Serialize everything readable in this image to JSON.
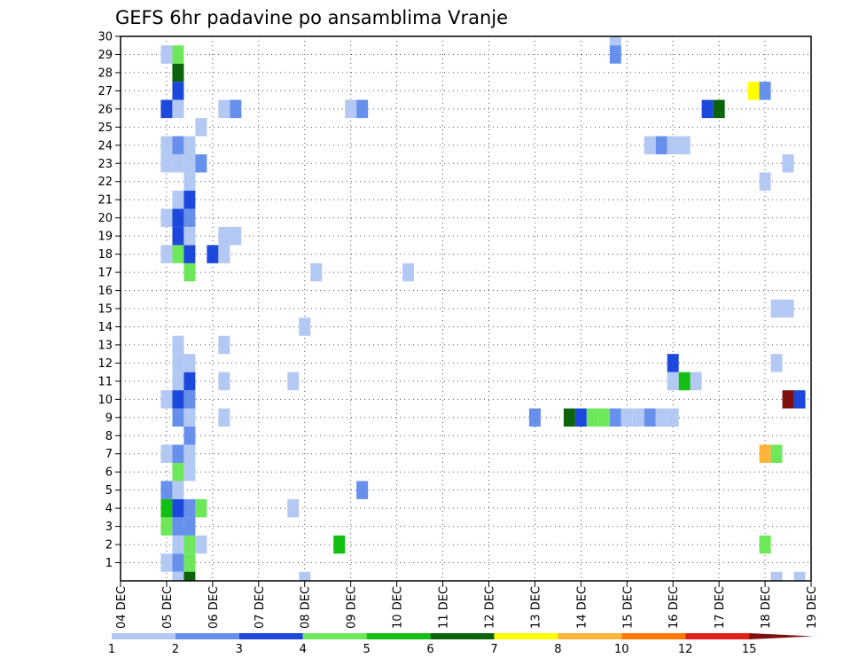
{
  "chart_data": {
    "type": "heatmap",
    "title": "GEFS 6hr padavine po ansamblima Vranje",
    "xlabel": "",
    "ylabel": "",
    "x_tick_labels": [
      "04 DEC",
      "05 DEC",
      "06 DEC",
      "07 DEC",
      "08 DEC",
      "09 DEC",
      "10 DEC",
      "11 DEC",
      "12 DEC",
      "13 DEC",
      "14 DEC",
      "15 DEC",
      "16 DEC",
      "17 DEC",
      "18 DEC",
      "19 DEC"
    ],
    "y_tick_labels": [
      "1",
      "2",
      "3",
      "4",
      "5",
      "6",
      "7",
      "8",
      "9",
      "10",
      "11",
      "12",
      "13",
      "14",
      "15",
      "16",
      "17",
      "18",
      "19",
      "20",
      "21",
      "22",
      "23",
      "24",
      "25",
      "26",
      "27",
      "28",
      "29",
      "30"
    ],
    "grid": true,
    "x_steps_per_day": 4,
    "color_scale": {
      "bounds": [
        "1",
        "2",
        "3",
        "4",
        "5",
        "6",
        "7",
        "8",
        "10",
        "12",
        "15",
        "20"
      ],
      "colors": [
        "#b3c8f3",
        "#6690ec",
        "#1c48dc",
        "#6ee85a",
        "#12bf12",
        "#0b640b",
        "#ffff00",
        "#ffb43c",
        "#ff7800",
        "#e1211b",
        "#801010"
      ]
    },
    "cells": [
      {
        "date": "05 DEC",
        "h": 0,
        "m": 1,
        "v": 1.5
      },
      {
        "date": "05 DEC",
        "h": 6,
        "m": 1,
        "v": 2.5
      },
      {
        "date": "05 DEC",
        "h": 12,
        "m": 1,
        "v": 4.5
      },
      {
        "date": "05 DEC",
        "h": 6,
        "m": 0,
        "v": 1.5
      },
      {
        "date": "05 DEC",
        "h": 12,
        "m": 0,
        "v": 6.5
      },
      {
        "date": "05 DEC",
        "h": 6,
        "m": 2,
        "v": 1.5
      },
      {
        "date": "05 DEC",
        "h": 12,
        "m": 2,
        "v": 4.5
      },
      {
        "date": "05 DEC",
        "h": 18,
        "m": 2,
        "v": 1.5
      },
      {
        "date": "05 DEC",
        "h": 0,
        "m": 3,
        "v": 4.5
      },
      {
        "date": "05 DEC",
        "h": 6,
        "m": 3,
        "v": 2.5
      },
      {
        "date": "05 DEC",
        "h": 12,
        "m": 3,
        "v": 2.5
      },
      {
        "date": "05 DEC",
        "h": 0,
        "m": 4,
        "v": 5.5
      },
      {
        "date": "05 DEC",
        "h": 6,
        "m": 4,
        "v": 3.5
      },
      {
        "date": "05 DEC",
        "h": 12,
        "m": 4,
        "v": 2.5
      },
      {
        "date": "05 DEC",
        "h": 18,
        "m": 4,
        "v": 4.5
      },
      {
        "date": "05 DEC",
        "h": 0,
        "m": 5,
        "v": 2.5
      },
      {
        "date": "05 DEC",
        "h": 6,
        "m": 5,
        "v": 1.5
      },
      {
        "date": "05 DEC",
        "h": 6,
        "m": 6,
        "v": 4.5
      },
      {
        "date": "05 DEC",
        "h": 12,
        "m": 6,
        "v": 1.5
      },
      {
        "date": "05 DEC",
        "h": 0,
        "m": 7,
        "v": 1.5
      },
      {
        "date": "05 DEC",
        "h": 6,
        "m": 7,
        "v": 2.5
      },
      {
        "date": "05 DEC",
        "h": 12,
        "m": 7,
        "v": 1.5
      },
      {
        "date": "05 DEC",
        "h": 12,
        "m": 8,
        "v": 2.5
      },
      {
        "date": "05 DEC",
        "h": 6,
        "m": 9,
        "v": 2.5
      },
      {
        "date": "05 DEC",
        "h": 12,
        "m": 9,
        "v": 1.5
      },
      {
        "date": "05 DEC",
        "h": 0,
        "m": 10,
        "v": 1.5
      },
      {
        "date": "05 DEC",
        "h": 6,
        "m": 10,
        "v": 3.5
      },
      {
        "date": "05 DEC",
        "h": 12,
        "m": 10,
        "v": 2.5
      },
      {
        "date": "05 DEC",
        "h": 6,
        "m": 11,
        "v": 1.5
      },
      {
        "date": "05 DEC",
        "h": 12,
        "m": 11,
        "v": 3.5
      },
      {
        "date": "05 DEC",
        "h": 6,
        "m": 12,
        "v": 1.5
      },
      {
        "date": "05 DEC",
        "h": 12,
        "m": 12,
        "v": 1.5
      },
      {
        "date": "05 DEC",
        "h": 6,
        "m": 13,
        "v": 1.5
      },
      {
        "date": "05 DEC",
        "h": 12,
        "m": 17,
        "v": 4.5
      },
      {
        "date": "05 DEC",
        "h": 0,
        "m": 18,
        "v": 1.5
      },
      {
        "date": "05 DEC",
        "h": 6,
        "m": 18,
        "v": 4.5
      },
      {
        "date": "05 DEC",
        "h": 12,
        "m": 18,
        "v": 3.5
      },
      {
        "date": "05 DEC",
        "h": 6,
        "m": 19,
        "v": 3.5
      },
      {
        "date": "05 DEC",
        "h": 12,
        "m": 19,
        "v": 1.5
      },
      {
        "date": "05 DEC",
        "h": 0,
        "m": 20,
        "v": 1.5
      },
      {
        "date": "05 DEC",
        "h": 6,
        "m": 20,
        "v": 3.5
      },
      {
        "date": "05 DEC",
        "h": 12,
        "m": 20,
        "v": 2.5
      },
      {
        "date": "05 DEC",
        "h": 6,
        "m": 21,
        "v": 1.5
      },
      {
        "date": "05 DEC",
        "h": 12,
        "m": 21,
        "v": 3.5
      },
      {
        "date": "05 DEC",
        "h": 12,
        "m": 22,
        "v": 1.5
      },
      {
        "date": "05 DEC",
        "h": 0,
        "m": 23,
        "v": 1.5
      },
      {
        "date": "05 DEC",
        "h": 6,
        "m": 23,
        "v": 1.5
      },
      {
        "date": "05 DEC",
        "h": 12,
        "m": 23,
        "v": 1.5
      },
      {
        "date": "05 DEC",
        "h": 18,
        "m": 23,
        "v": 2.5
      },
      {
        "date": "05 DEC",
        "h": 0,
        "m": 24,
        "v": 1.5
      },
      {
        "date": "05 DEC",
        "h": 6,
        "m": 24,
        "v": 2.5
      },
      {
        "date": "05 DEC",
        "h": 12,
        "m": 24,
        "v": 1.5
      },
      {
        "date": "05 DEC",
        "h": 18,
        "m": 25,
        "v": 1.5
      },
      {
        "date": "05 DEC",
        "h": 0,
        "m": 26,
        "v": 3.5
      },
      {
        "date": "05 DEC",
        "h": 6,
        "m": 26,
        "v": 1.5
      },
      {
        "date": "05 DEC",
        "h": 6,
        "m": 27,
        "v": 3.5
      },
      {
        "date": "05 DEC",
        "h": 6,
        "m": 28,
        "v": 6.5
      },
      {
        "date": "05 DEC",
        "h": 0,
        "m": 29,
        "v": 1.5
      },
      {
        "date": "05 DEC",
        "h": 6,
        "m": 29,
        "v": 4.5
      },
      {
        "date": "06 DEC",
        "h": 0,
        "m": 18,
        "v": 3.5
      },
      {
        "date": "06 DEC",
        "h": 6,
        "m": 18,
        "v": 1.5
      },
      {
        "date": "06 DEC",
        "h": 6,
        "m": 19,
        "v": 1.5
      },
      {
        "date": "06 DEC",
        "h": 12,
        "m": 19,
        "v": 1.5
      },
      {
        "date": "06 DEC",
        "h": 6,
        "m": 26,
        "v": 1.5
      },
      {
        "date": "06 DEC",
        "h": 12,
        "m": 26,
        "v": 2.5
      },
      {
        "date": "06 DEC",
        "h": 6,
        "m": 13,
        "v": 1.5
      },
      {
        "date": "06 DEC",
        "h": 6,
        "m": 11,
        "v": 1.5
      },
      {
        "date": "06 DEC",
        "h": 6,
        "m": 9,
        "v": 1.5
      },
      {
        "date": "07 DEC",
        "h": 18,
        "m": 11,
        "v": 1.5
      },
      {
        "date": "07 DEC",
        "h": 18,
        "m": 4,
        "v": 1.5
      },
      {
        "date": "08 DEC",
        "h": 0,
        "m": 0,
        "v": 1.5
      },
      {
        "date": "08 DEC",
        "h": 0,
        "m": 14,
        "v": 1.5
      },
      {
        "date": "08 DEC",
        "h": 6,
        "m": 17,
        "v": 1.5
      },
      {
        "date": "08 DEC",
        "h": 18,
        "m": 2,
        "v": 5.5
      },
      {
        "date": "09 DEC",
        "h": 0,
        "m": 26,
        "v": 1.5
      },
      {
        "date": "09 DEC",
        "h": 6,
        "m": 26,
        "v": 2.5
      },
      {
        "date": "09 DEC",
        "h": 6,
        "m": 5,
        "v": 2.5
      },
      {
        "date": "10 DEC",
        "h": 6,
        "m": 17,
        "v": 1.5
      },
      {
        "date": "13 DEC",
        "h": 0,
        "m": 9,
        "v": 2.5
      },
      {
        "date": "13 DEC",
        "h": 18,
        "m": 9,
        "v": 6.5
      },
      {
        "date": "14 DEC",
        "h": 0,
        "m": 9,
        "v": 3.5
      },
      {
        "date": "14 DEC",
        "h": 6,
        "m": 9,
        "v": 4.5
      },
      {
        "date": "14 DEC",
        "h": 12,
        "m": 9,
        "v": 4.5
      },
      {
        "date": "14 DEC",
        "h": 18,
        "m": 9,
        "v": 2.5
      },
      {
        "date": "15 DEC",
        "h": 0,
        "m": 9,
        "v": 1.5
      },
      {
        "date": "15 DEC",
        "h": 6,
        "m": 9,
        "v": 1.5
      },
      {
        "date": "15 DEC",
        "h": 12,
        "m": 9,
        "v": 2.5
      },
      {
        "date": "15 DEC",
        "h": 18,
        "m": 9,
        "v": 1.5
      },
      {
        "date": "16 DEC",
        "h": 0,
        "m": 9,
        "v": 1.5
      },
      {
        "date": "14 DEC",
        "h": 18,
        "m": 30,
        "v": 1.5
      },
      {
        "date": "14 DEC",
        "h": 18,
        "m": 29,
        "v": 2.5
      },
      {
        "date": "15 DEC",
        "h": 12,
        "m": 24,
        "v": 1.5
      },
      {
        "date": "15 DEC",
        "h": 18,
        "m": 24,
        "v": 2.5
      },
      {
        "date": "16 DEC",
        "h": 0,
        "m": 24,
        "v": 1.5
      },
      {
        "date": "16 DEC",
        "h": 6,
        "m": 24,
        "v": 1.5
      },
      {
        "date": "16 DEC",
        "h": 0,
        "m": 12,
        "v": 3.5
      },
      {
        "date": "16 DEC",
        "h": 0,
        "m": 11,
        "v": 1.5
      },
      {
        "date": "16 DEC",
        "h": 6,
        "m": 11,
        "v": 5.5
      },
      {
        "date": "16 DEC",
        "h": 12,
        "m": 11,
        "v": 1.5
      },
      {
        "date": "16 DEC",
        "h": 18,
        "m": 26,
        "v": 3.5
      },
      {
        "date": "17 DEC",
        "h": 0,
        "m": 26,
        "v": 6.5
      },
      {
        "date": "17 DEC",
        "h": 18,
        "m": 27,
        "v": 7.5
      },
      {
        "date": "18 DEC",
        "h": 0,
        "m": 27,
        "v": 2.5
      },
      {
        "date": "18 DEC",
        "h": 0,
        "m": 22,
        "v": 1.5
      },
      {
        "date": "18 DEC",
        "h": 12,
        "m": 23,
        "v": 1.5
      },
      {
        "date": "18 DEC",
        "h": 6,
        "m": 15,
        "v": 1.5
      },
      {
        "date": "18 DEC",
        "h": 12,
        "m": 15,
        "v": 1.5
      },
      {
        "date": "18 DEC",
        "h": 6,
        "m": 12,
        "v": 1.5
      },
      {
        "date": "18 DEC",
        "h": 12,
        "m": 10,
        "v": 16
      },
      {
        "date": "18 DEC",
        "h": 18,
        "m": 10,
        "v": 3.5
      },
      {
        "date": "18 DEC",
        "h": 0,
        "m": 7,
        "v": 9
      },
      {
        "date": "18 DEC",
        "h": 6,
        "m": 7,
        "v": 4.5
      },
      {
        "date": "18 DEC",
        "h": 0,
        "m": 2,
        "v": 4.5
      },
      {
        "date": "18 DEC",
        "h": 6,
        "m": 0,
        "v": 1.5
      },
      {
        "date": "18 DEC",
        "h": 18,
        "m": 0,
        "v": 1.5
      }
    ]
  }
}
